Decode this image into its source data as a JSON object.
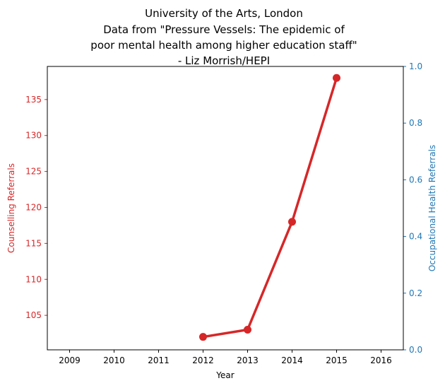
{
  "chart_data": {
    "type": "line",
    "title_lines": [
      "University of the Arts, London",
      "Data from \"Pressure Vessels: The epidemic of",
      "poor mental health among higher education staff\"",
      "- Liz Morrish/HEPI"
    ],
    "xlabel": "Year",
    "ylabel_left": "Counselling Referrals",
    "ylabel_right": "Occupational Health Referrals",
    "x_ticks": [
      "2009",
      "2010",
      "2011",
      "2012",
      "2013",
      "2014",
      "2015",
      "2016"
    ],
    "xlim": [
      2008.5,
      2016.5
    ],
    "y_left_ticks": [
      "105",
      "110",
      "115",
      "120",
      "125",
      "130",
      "135"
    ],
    "ylim_left": [
      100.2,
      139.6
    ],
    "y_right_ticks": [
      "0.0",
      "0.2",
      "0.4",
      "0.6",
      "0.8",
      "1.0"
    ],
    "ylim_right": [
      0,
      1
    ],
    "series": [
      {
        "name": "Counselling Referrals",
        "axis": "left",
        "color": "#d62728",
        "x": [
          2012,
          2013,
          2014,
          2015
        ],
        "y": [
          102,
          103,
          118,
          138
        ]
      }
    ],
    "left_axis_color": "#d62728",
    "right_axis_color": "#1f77b4",
    "grid": false,
    "legend": "none"
  }
}
